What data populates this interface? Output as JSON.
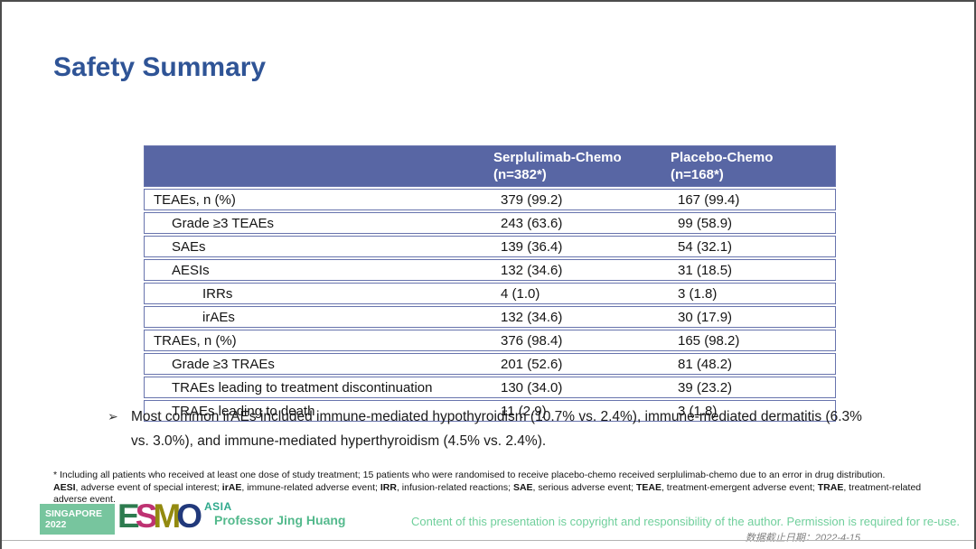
{
  "title": "Safety Summary",
  "colors": {
    "title_blue": "#2F5496",
    "table_header_bg": "#5866A4",
    "table_border": "#6874AD",
    "header_text": "#FFFFFF",
    "badge_green": "#77C59E",
    "presenter_green": "#53B98C",
    "copyright_green": "#6FCF9B",
    "cutoff_gray": "#7F7F7F"
  },
  "table": {
    "header": {
      "col2_line1": "Serplulimab-Chemo",
      "col2_line2": "(n=382*)",
      "col3_line1": "Placebo-Chemo",
      "col3_line2": "(n=168*)"
    },
    "rows": [
      {
        "label": "TEAEs, n (%)",
        "indent": 0,
        "serplulimab": "379 (99.2)",
        "placebo": "167 (99.4)"
      },
      {
        "label": "Grade ≥3 TEAEs",
        "indent": 1,
        "serplulimab": "243 (63.6)",
        "placebo": "99 (58.9)"
      },
      {
        "label": "SAEs",
        "indent": 1,
        "serplulimab": "139 (36.4)",
        "placebo": "54 (32.1)"
      },
      {
        "label": "AESIs",
        "indent": 1,
        "serplulimab": "132 (34.6)",
        "placebo": "31 (18.5)"
      },
      {
        "label": "IRRs",
        "indent": 2,
        "serplulimab": "4 (1.0)",
        "placebo": "3 (1.8)"
      },
      {
        "label": "irAEs",
        "indent": 2,
        "serplulimab": "132 (34.6)",
        "placebo": "30 (17.9)"
      },
      {
        "label": "TRAEs, n (%)",
        "indent": 0,
        "serplulimab": "376 (98.4)",
        "placebo": "165 (98.2)"
      },
      {
        "label": "Grade ≥3 TRAEs",
        "indent": 1,
        "serplulimab": "201 (52.6)",
        "placebo": "81 (48.2)"
      },
      {
        "label": "TRAEs leading to treatment discontinuation",
        "indent": 1,
        "serplulimab": "130 (34.0)",
        "placebo": "39 (23.2)"
      },
      {
        "label": "TRAEs leading to death",
        "indent": 1,
        "serplulimab": "11 (2.9)",
        "placebo": "3 (1.8)"
      }
    ]
  },
  "bullet": {
    "marker": "➢",
    "text": "Most common irAEs included immune-mediated hypothyroidism (10.7% vs. 2.4%), immune-mediated dermatitis (6.3% vs. 3.0%), and immune-mediated hyperthyroidism (4.5% vs. 2.4%)."
  },
  "footnotes": {
    "line1": "* Including all patients who received at least one dose of study treatment; 15 patients who were randomised to receive placebo-chemo received serplulimab-chemo due to an error in drug distribution.",
    "line2_segments": [
      {
        "text": "AESI",
        "bold": true
      },
      {
        "text": ", adverse event of special interest; ",
        "bold": false
      },
      {
        "text": "irAE",
        "bold": true
      },
      {
        "text": ", immune-related adverse event; ",
        "bold": false
      },
      {
        "text": "IRR",
        "bold": true
      },
      {
        "text": ", infusion-related reactions; ",
        "bold": false
      },
      {
        "text": "SAE",
        "bold": true
      },
      {
        "text": ", serious adverse event; ",
        "bold": false
      },
      {
        "text": "TEAE",
        "bold": true
      },
      {
        "text": ", treatment-emergent adverse event; ",
        "bold": false
      },
      {
        "text": "TRAE",
        "bold": true
      },
      {
        "text": ", treatment-related adverse event.",
        "bold": false
      }
    ]
  },
  "footer": {
    "logo": {
      "badge_line1": "SINGAPORE",
      "badge_line2": "2022",
      "letters": [
        {
          "char": "E",
          "color": "#2D7B4F"
        },
        {
          "char": "S",
          "color": "#BE3272"
        },
        {
          "char": "M",
          "color": "#938A10"
        },
        {
          "char": "O",
          "color": "#21397B"
        }
      ],
      "suffix": "ASIA"
    },
    "presenter": "Professor Jing Huang",
    "copyright": "Content of this presentation is copyright and responsibility of the author. Permission is required for re-use.",
    "data_cutoff": "数据截止日期：2022-4-15"
  }
}
